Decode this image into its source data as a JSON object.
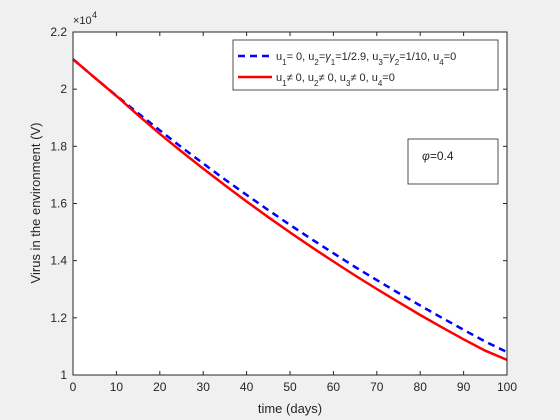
{
  "chart_data": {
    "type": "line",
    "xlabel": "time (days)",
    "ylabel": "Virus in the environment (V)",
    "exponent_label": "×10",
    "exponent_power": "4",
    "xlim": [
      0,
      100
    ],
    "ylim": [
      10000,
      22000
    ],
    "xticks": [
      0,
      10,
      20,
      30,
      40,
      50,
      60,
      70,
      80,
      90,
      100
    ],
    "yticks": [
      10000,
      12000,
      14000,
      16000,
      18000,
      20000,
      22000
    ],
    "ytick_labels": [
      "1",
      "1.2",
      "1.4",
      "1.6",
      "1.8",
      "2",
      "2.2"
    ],
    "grid": false,
    "legend_position": "top-right",
    "annotation": {
      "symbol": "φ",
      "text": "=0.4"
    },
    "series": [
      {
        "name": "u1= 0, u2=γ1=1/2.9, u3=γ2=1/10, u4=0",
        "legend_segments": [
          [
            "u",
            ""
          ],
          [
            "1",
            "sub"
          ],
          [
            "= 0, u",
            ""
          ],
          [
            "2",
            "sub"
          ],
          [
            "=",
            ""
          ],
          [
            "γ",
            "greek"
          ],
          [
            "1",
            "sub"
          ],
          [
            "=1/2.9, u",
            ""
          ],
          [
            "3",
            "sub"
          ],
          [
            "=",
            ""
          ],
          [
            "γ",
            "greek"
          ],
          [
            "2",
            "sub"
          ],
          [
            "=1/10, u",
            ""
          ],
          [
            "4",
            "sub"
          ],
          [
            "=0",
            ""
          ]
        ],
        "color": "#0000ff",
        "style": "dashed",
        "x": [
          0,
          5,
          10,
          15,
          20,
          25,
          30,
          35,
          40,
          45,
          50,
          55,
          60,
          65,
          70,
          75,
          80,
          85,
          90,
          95,
          100
        ],
        "y": [
          21050,
          20400,
          19770,
          19160,
          18560,
          17970,
          17400,
          16840,
          16300,
          15770,
          15250,
          14750,
          14260,
          13780,
          13320,
          12870,
          12430,
          12000,
          11580,
          11170,
          10800
        ]
      },
      {
        "name": "u1≠ 0, u2≠ 0, u3≠ 0, u4=0",
        "legend_segments": [
          [
            "u",
            ""
          ],
          [
            "1",
            "sub"
          ],
          [
            "≠ 0, u",
            ""
          ],
          [
            "2",
            "sub"
          ],
          [
            "≠ 0, u",
            ""
          ],
          [
            "3",
            "sub"
          ],
          [
            "≠ 0, u",
            ""
          ],
          [
            "4",
            "sub"
          ],
          [
            "=0",
            ""
          ]
        ],
        "color": "#ff0000",
        "style": "solid",
        "x": [
          0,
          5,
          10,
          15,
          20,
          25,
          30,
          35,
          40,
          45,
          50,
          55,
          60,
          65,
          70,
          75,
          80,
          85,
          90,
          95,
          100
        ],
        "y": [
          21050,
          20400,
          19760,
          19090,
          18440,
          17820,
          17220,
          16640,
          16070,
          15520,
          14990,
          14470,
          13970,
          13480,
          13010,
          12550,
          12100,
          11670,
          11250,
          10850,
          10530
        ]
      }
    ]
  }
}
